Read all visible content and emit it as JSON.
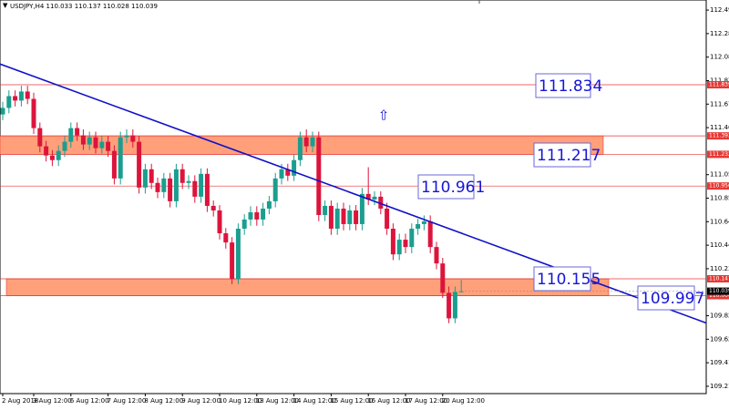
{
  "chart_data": {
    "type": "candlestick",
    "title": "USDJPY,H4  110.033 110.137 110.028 110.039",
    "categories": [
      "2 Aug 2018",
      null,
      null,
      null,
      null,
      "3 Aug 12:00",
      null,
      null,
      null,
      null,
      null,
      "6 Aug 12:00",
      null,
      null,
      null,
      null,
      null,
      "7 Aug 12:00",
      null,
      null,
      null,
      null,
      null,
      "8 Aug 12:00",
      null,
      null,
      null,
      null,
      null,
      "9 Aug 12:00",
      null,
      null,
      null,
      null,
      null,
      "10 Aug 12:00",
      null,
      null,
      null,
      null,
      null,
      "13 Aug 12:00",
      null,
      null,
      null,
      null,
      null,
      "14 Aug 12:00",
      null,
      null,
      null,
      null,
      null,
      "15 Aug 12:00",
      null,
      null,
      null,
      null,
      null,
      "16 Aug 12:00",
      null,
      null,
      null,
      null,
      null,
      "17 Aug 12:00",
      null,
      null,
      null,
      null,
      null,
      "20 Aug 12:00",
      null,
      null,
      null
    ],
    "open": [
      111.58,
      111.637,
      111.74,
      111.701,
      111.78,
      111.716,
      111.461,
      111.302,
      111.222,
      111.182,
      111.262,
      111.342,
      111.461,
      111.397,
      111.318,
      111.381,
      111.286,
      111.342,
      111.262,
      111.022,
      111.381,
      111.397,
      111.342,
      110.943,
      111.102,
      110.983,
      110.903,
      111.022,
      110.823,
      111.102,
      110.983,
      110.999,
      110.863,
      111.062,
      110.783,
      110.743,
      110.544,
      110.464,
      110.145,
      110.584,
      110.664,
      110.727,
      110.664,
      110.759,
      110.823,
      111.022,
      111.102,
      111.046,
      111.182,
      111.381,
      111.302,
      111.381,
      110.703,
      110.783,
      110.584,
      110.759,
      110.624,
      110.743,
      110.624,
      110.887,
      110.839,
      110.863,
      110.759,
      110.584,
      110.36,
      110.488,
      110.424,
      110.584,
      110.624,
      110.648,
      110.424,
      110.281,
      110.025,
      109.802,
      110.033
    ],
    "high": [
      111.69,
      111.79,
      111.79,
      111.83,
      111.83,
      111.77,
      111.51,
      111.35,
      111.27,
      111.31,
      111.39,
      111.51,
      111.51,
      111.45,
      111.43,
      111.43,
      111.39,
      111.39,
      111.31,
      111.43,
      111.45,
      111.45,
      111.39,
      111.15,
      111.15,
      111.03,
      111.07,
      111.07,
      111.15,
      111.15,
      111.05,
      111.05,
      111.11,
      111.11,
      110.83,
      110.79,
      110.59,
      110.51,
      110.63,
      110.71,
      110.78,
      110.78,
      110.81,
      110.87,
      111.07,
      111.15,
      111.15,
      111.23,
      111.43,
      111.45,
      111.43,
      111.43,
      110.83,
      110.83,
      110.81,
      110.81,
      110.79,
      110.79,
      110.94,
      111.12,
      110.91,
      110.91,
      110.81,
      110.63,
      110.54,
      110.54,
      110.63,
      110.67,
      110.7,
      110.7,
      110.47,
      110.33,
      110.08,
      110.08,
      110.137
    ],
    "low": [
      111.53,
      111.59,
      111.65,
      111.65,
      111.67,
      111.41,
      111.25,
      111.17,
      111.13,
      111.13,
      111.21,
      111.29,
      111.35,
      111.27,
      111.27,
      111.24,
      111.24,
      111.21,
      110.97,
      110.97,
      111.33,
      111.29,
      110.89,
      110.89,
      110.93,
      110.85,
      110.85,
      110.77,
      110.77,
      110.93,
      110.93,
      110.81,
      110.81,
      110.73,
      110.69,
      110.49,
      110.41,
      110.1,
      110.1,
      110.53,
      110.61,
      110.61,
      110.61,
      110.71,
      110.77,
      110.97,
      111.0,
      111.0,
      111.13,
      111.25,
      111.25,
      110.65,
      110.65,
      110.53,
      110.53,
      110.57,
      110.57,
      110.57,
      110.57,
      110.79,
      110.79,
      110.71,
      110.53,
      110.31,
      110.31,
      110.37,
      110.37,
      110.53,
      110.57,
      110.37,
      110.23,
      109.98,
      109.76,
      109.76,
      110.028
    ],
    "close": [
      111.637,
      111.74,
      111.701,
      111.78,
      111.716,
      111.461,
      111.302,
      111.222,
      111.182,
      111.262,
      111.342,
      111.461,
      111.397,
      111.318,
      111.381,
      111.286,
      111.342,
      111.262,
      111.022,
      111.381,
      111.397,
      111.342,
      110.943,
      111.102,
      110.983,
      110.903,
      111.022,
      110.823,
      111.102,
      110.983,
      110.999,
      110.863,
      111.062,
      110.783,
      110.743,
      110.544,
      110.464,
      110.145,
      110.584,
      110.664,
      110.727,
      110.664,
      110.759,
      110.823,
      111.022,
      111.102,
      111.046,
      111.182,
      111.381,
      111.302,
      111.381,
      110.703,
      110.783,
      110.584,
      110.759,
      110.624,
      110.743,
      110.624,
      110.887,
      110.839,
      110.863,
      110.759,
      110.584,
      110.36,
      110.488,
      110.424,
      110.584,
      110.624,
      110.648,
      110.424,
      110.281,
      110.025,
      109.802,
      110.033,
      110.039
    ],
    "up_color": "#1a9e8f",
    "down_color": "#dc143c",
    "ylim": [
      109.146,
      112.578
    ],
    "yticks": [
      {
        "value": 112.49,
        "label": "112.490"
      },
      112.285,
      {
        "value": 112.08,
        "label": "112.080"
      },
      111.875,
      {
        "value": 111.67,
        "label": "111.670"
      },
      111.465,
      111.055,
      {
        "value": 110.85,
        "label": "110.850"
      },
      110.645,
      {
        "value": 110.44,
        "label": "110.440"
      },
      110.235,
      109.825,
      {
        "value": 109.62,
        "label": "109.620"
      },
      109.415,
      {
        "value": 109.21,
        "label": "109.210"
      }
    ],
    "levels": [
      111.839,
      111.393,
      111.232,
      110.956,
      110.147,
      {
        "value": 110.0,
        "label": "110.000"
      }
    ],
    "level_color": "#e53935",
    "zone_color": "#ffa07a",
    "trendline": [
      112.02,
      109.762
    ],
    "trendline_color": "#1010c8",
    "annotations": [
      "111.834",
      "111.217",
      "110.961",
      "110.155",
      "109.997"
    ],
    "grid": false
  }
}
